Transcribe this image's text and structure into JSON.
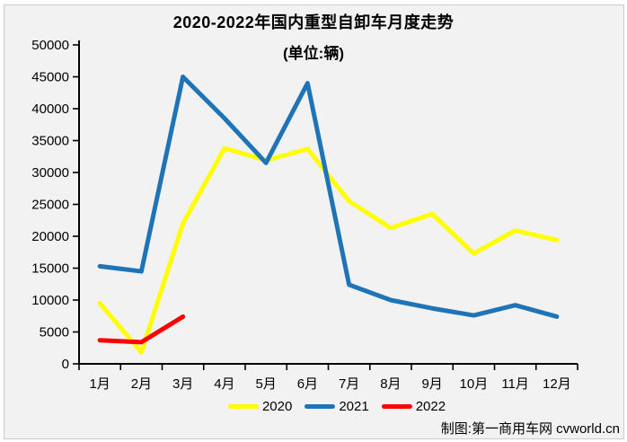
{
  "page": {
    "credit": "制图:第一商用车网 cvworld.cn"
  },
  "colors": {
    "background": "#F2F2F2",
    "panel_border": "#C9CDD1",
    "axis": "#000000",
    "series_2020": "#FFFF00",
    "series_2021": "#1F74B8",
    "series_2022": "#FF0000"
  },
  "chart_data": {
    "type": "line",
    "title": "2020-2022年国内重型自卸车月度走势",
    "unit_label": "(单位:辆)",
    "categories": [
      "1月",
      "2月",
      "3月",
      "4月",
      "5月",
      "6月",
      "7月",
      "8月",
      "9月",
      "10月",
      "11月",
      "12月"
    ],
    "series": [
      {
        "name": "2020",
        "color": "#FFFF00",
        "values": [
          9500,
          1800,
          22000,
          33800,
          31900,
          33700,
          25500,
          21300,
          23500,
          17300,
          20900,
          19400
        ]
      },
      {
        "name": "2021",
        "color": "#1F74B8",
        "values": [
          15300,
          14500,
          45000,
          38500,
          31500,
          44000,
          12400,
          10000,
          8700,
          7600,
          9200,
          7400
        ]
      },
      {
        "name": "2022",
        "color": "#FF0000",
        "values": [
          3700,
          3400,
          7400
        ]
      }
    ],
    "ylim": [
      0,
      50000
    ],
    "ytick_step": 5000,
    "grid": false,
    "legend_position": "bottom"
  }
}
